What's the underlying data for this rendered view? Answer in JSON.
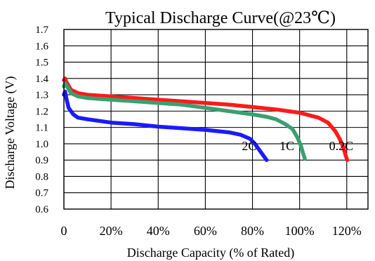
{
  "chart_data": {
    "type": "line",
    "title": "Typical Discharge Curve(@23℃)",
    "xlabel": "Discharge Capacity (% of Rated)",
    "ylabel": "Discharge Voltage (V)",
    "xlim": [
      0,
      129
    ],
    "ylim": [
      0.6,
      1.7
    ],
    "grid": true,
    "x_ticks": [
      {
        "value": 0,
        "label": "0"
      },
      {
        "value": 20,
        "label": "20%"
      },
      {
        "value": 40,
        "label": "40%"
      },
      {
        "value": 60,
        "label": "60%"
      },
      {
        "value": 80,
        "label": "80%"
      },
      {
        "value": 100,
        "label": "100%"
      },
      {
        "value": 120,
        "label": "120%"
      }
    ],
    "y_ticks": [
      {
        "value": 0.6,
        "label": "0.6"
      },
      {
        "value": 0.7,
        "label": "0.7"
      },
      {
        "value": 0.8,
        "label": "0.8"
      },
      {
        "value": 0.9,
        "label": "0.9"
      },
      {
        "value": 1.0,
        "label": "1.0"
      },
      {
        "value": 1.1,
        "label": "1.1"
      },
      {
        "value": 1.2,
        "label": "1.2"
      },
      {
        "value": 1.3,
        "label": "1.3"
      },
      {
        "value": 1.4,
        "label": "1.4"
      },
      {
        "value": 1.5,
        "label": "1.5"
      },
      {
        "value": 1.6,
        "label": "1.6"
      },
      {
        "value": 1.7,
        "label": "1.7"
      }
    ],
    "series": [
      {
        "name": "0.2C",
        "color": "#ff1a1a",
        "x": [
          0,
          0.5,
          1,
          3,
          6,
          10,
          20,
          30,
          40,
          50,
          60,
          70,
          80,
          90,
          100,
          108,
          112,
          115,
          117,
          118.5,
          119.5,
          120.2
        ],
        "y": [
          1.39,
          1.4,
          1.38,
          1.33,
          1.31,
          1.3,
          1.29,
          1.28,
          1.27,
          1.26,
          1.25,
          1.24,
          1.225,
          1.21,
          1.19,
          1.16,
          1.13,
          1.08,
          1.03,
          0.98,
          0.93,
          0.9
        ]
      },
      {
        "name": "1C",
        "color": "#3aa070",
        "x": [
          0,
          0.5,
          1,
          3,
          6,
          10,
          20,
          30,
          40,
          50,
          60,
          70,
          80,
          86,
          90,
          94,
          97,
          99,
          100.5,
          101.5,
          102.2
        ],
        "y": [
          1.35,
          1.37,
          1.36,
          1.31,
          1.29,
          1.28,
          1.27,
          1.26,
          1.25,
          1.24,
          1.22,
          1.2,
          1.18,
          1.165,
          1.15,
          1.12,
          1.09,
          1.04,
          0.99,
          0.94,
          0.91
        ]
      },
      {
        "name": "2C",
        "color": "#1a1aff",
        "x": [
          0,
          0.5,
          1,
          2,
          4,
          6,
          10,
          20,
          30,
          40,
          50,
          60,
          70,
          75,
          79,
          81,
          83,
          85,
          86
        ],
        "y": [
          1.3,
          1.32,
          1.28,
          1.22,
          1.18,
          1.16,
          1.15,
          1.13,
          1.12,
          1.105,
          1.095,
          1.085,
          1.07,
          1.055,
          1.03,
          1.0,
          0.96,
          0.92,
          0.9
        ]
      }
    ],
    "annotations": [
      {
        "text": "2C",
        "x": 75.5,
        "y": 0.99
      },
      {
        "text": "1C",
        "x": 91.5,
        "y": 0.99
      },
      {
        "text": "0.2C",
        "x": 112.5,
        "y": 0.99
      }
    ]
  }
}
